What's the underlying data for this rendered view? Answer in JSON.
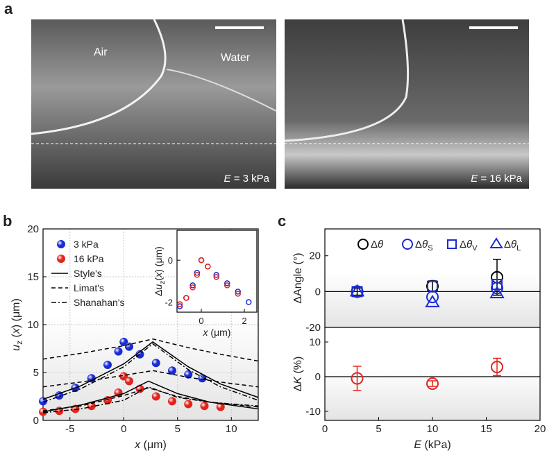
{
  "panel_labels": [
    "a",
    "b",
    "c"
  ],
  "images": [
    {
      "labels": [
        "Air",
        "Water"
      ],
      "caption": [
        {
          "text": "E",
          "style": "italic"
        },
        {
          "text": " = 3 kPa"
        }
      ]
    },
    {
      "caption": [
        {
          "text": "E",
          "style": "italic"
        },
        {
          "text": " = 16 kPa"
        }
      ]
    }
  ],
  "chart_data": [
    {
      "type": "line",
      "xlabel": [
        {
          "text": "x",
          "style": "italic"
        },
        {
          "text": " (μm)"
        }
      ],
      "ylabel": [
        {
          "text": "u",
          "style": "italic"
        },
        {
          "text": "z",
          "style": "sub"
        },
        {
          "text": " ("
        },
        {
          "text": "x",
          "style": "italic"
        },
        {
          "text": ") (μm)"
        }
      ],
      "xlim": [
        -7.5,
        12.5
      ],
      "ylim": [
        0,
        20
      ],
      "xticks": [
        -5,
        0,
        5,
        10
      ],
      "yticks": [
        0,
        5,
        10,
        15,
        20
      ],
      "grid": true,
      "legend": "upper left",
      "series": [
        {
          "name": "3 kPa",
          "color": "#1a2bd6",
          "marker": "sphere",
          "x": [
            -7.5,
            -6,
            -4.5,
            -3,
            -1.5,
            -0.5,
            0,
            0.5,
            1.5,
            3,
            4.5,
            6,
            7.3
          ],
          "values": [
            2.0,
            2.6,
            3.4,
            4.4,
            5.8,
            7.2,
            8.2,
            7.7,
            6.9,
            6.0,
            5.2,
            4.8,
            4.4
          ]
        },
        {
          "name": "16 kPa",
          "color": "#e3241d",
          "marker": "sphere",
          "x": [
            -7.5,
            -6,
            -4.5,
            -3,
            -1.5,
            -0.5,
            0,
            0.5,
            1.5,
            3,
            4.5,
            6,
            7.5,
            9
          ],
          "values": [
            0.9,
            1.0,
            1.2,
            1.5,
            2.1,
            2.9,
            4.6,
            4.1,
            3.3,
            2.5,
            2.0,
            1.7,
            1.5,
            1.4
          ]
        },
        {
          "name": "Style's",
          "color": "#000000",
          "dash": "solid",
          "x": [
            -7.5,
            -4,
            0,
            2.7,
            6,
            9,
            12.5
          ],
          "values": [
            2.2,
            3.6,
            5.9,
            8.2,
            5.6,
            3.8,
            2.4
          ]
        },
        {
          "color": "#000000",
          "dash": "solid",
          "x": [
            -7.5,
            -4,
            0,
            2.3,
            5,
            8,
            12.5
          ],
          "values": [
            0.9,
            1.6,
            2.8,
            4.1,
            2.8,
            1.9,
            1.2
          ]
        },
        {
          "name": "Limat's",
          "color": "#000000",
          "dash": "dashed",
          "x": [
            -7.5,
            -4,
            0,
            2.7,
            6,
            9,
            12.5
          ],
          "values": [
            6.4,
            7.0,
            7.8,
            8.5,
            7.6,
            6.9,
            6.2
          ]
        },
        {
          "color": "#000000",
          "dash": "dashed",
          "x": [
            -7.5,
            -4,
            0,
            2.7,
            6,
            9,
            12.5
          ],
          "values": [
            3.5,
            4.0,
            4.7,
            5.2,
            4.5,
            4.0,
            3.5
          ]
        },
        {
          "color": "#000000",
          "dash": "dashed",
          "x": [
            -7.5,
            -4,
            0,
            2.3,
            5,
            8,
            12.5
          ],
          "values": [
            1.0,
            1.5,
            2.6,
            3.4,
            2.5,
            1.9,
            1.4
          ]
        },
        {
          "name": "Shanahan's",
          "color": "#000000",
          "dash": "dashdot",
          "x": [
            -7.5,
            -4,
            0,
            2.7,
            6,
            9,
            12.5
          ],
          "values": [
            1.9,
            3.3,
            5.6,
            8.0,
            5.3,
            3.5,
            2.1
          ]
        },
        {
          "color": "#000000",
          "dash": "dashdot",
          "x": [
            -7.5,
            -4,
            0,
            2.3,
            5,
            8,
            12.5
          ],
          "values": [
            0.8,
            1.2,
            2.1,
            3.5,
            2.4,
            1.9,
            1.5
          ]
        }
      ]
    },
    {
      "type": "line",
      "xlabel": [
        {
          "text": "x",
          "style": "italic"
        },
        {
          "text": " (μm)"
        }
      ],
      "ylabel": [
        {
          "text": "Δ"
        },
        {
          "text": "u",
          "style": "italic"
        },
        {
          "text": "z",
          "style": "sub"
        },
        {
          "text": "("
        },
        {
          "text": "x",
          "style": "italic"
        },
        {
          "text": ") (μm)"
        }
      ],
      "xlim": [
        -1.13,
        2.58
      ],
      "ylim": [
        -2.48,
        1.43
      ],
      "xticks": [
        0,
        2
      ],
      "yticks": [
        -2,
        0
      ],
      "series": [
        {
          "color": "#1a2bd6",
          "marker": "ring",
          "x": [
            -1.0,
            -0.7,
            -0.4,
            -0.2,
            0,
            0.3,
            0.7,
            1.2,
            1.7,
            2.2
          ],
          "values": [
            -2.2,
            -1.8,
            -1.2,
            -0.6,
            0,
            -0.3,
            -0.7,
            -1.1,
            -1.5,
            -2.0
          ]
        },
        {
          "color": "#e3241d",
          "marker": "ring",
          "x": [
            -1.0,
            -0.7,
            -0.4,
            -0.2,
            0,
            0.3,
            0.7,
            1.2,
            1.7
          ],
          "values": [
            -2.1,
            -1.8,
            -1.3,
            -0.7,
            0,
            -0.3,
            -0.8,
            -1.2,
            -1.6
          ]
        }
      ]
    },
    {
      "type": "scatter",
      "ylabel": [
        {
          "text": "ΔAngle (°)"
        }
      ],
      "xlim": [
        0,
        20
      ],
      "ylim": [
        -20,
        35
      ],
      "yticks": [
        -20,
        0,
        20
      ],
      "legend": "top",
      "zero_line": true,
      "series": [
        {
          "name": [
            {
              "text": "Δ"
            },
            {
              "text": "θ",
              "style": "italic"
            }
          ],
          "color": "#000000",
          "marker": "circle",
          "x": [
            3,
            10,
            16
          ],
          "values": [
            0,
            3,
            8
          ],
          "errors": [
            2,
            3,
            10
          ]
        },
        {
          "name": [
            {
              "text": "Δ"
            },
            {
              "text": "θ",
              "style": "italic"
            },
            {
              "text": "S",
              "style": "sub"
            }
          ],
          "color": "#1a2bd6",
          "marker": "circle",
          "x": [
            3,
            10,
            16
          ],
          "values": [
            0,
            -3,
            2
          ]
        },
        {
          "name": [
            {
              "text": "Δ"
            },
            {
              "text": "θ",
              "style": "italic"
            },
            {
              "text": "V",
              "style": "sub"
            }
          ],
          "color": "#1a2bd6",
          "marker": "square",
          "x": [
            3,
            10,
            16
          ],
          "values": [
            0,
            3,
            4
          ]
        },
        {
          "name": [
            {
              "text": "Δ"
            },
            {
              "text": "θ",
              "style": "italic"
            },
            {
              "text": "L",
              "style": "sub"
            }
          ],
          "color": "#1a2bd6",
          "marker": "triangle",
          "x": [
            3,
            10,
            16
          ],
          "values": [
            0,
            -6,
            -1
          ]
        }
      ]
    },
    {
      "type": "scatter",
      "xlabel": [
        {
          "text": "E",
          "style": "italic"
        },
        {
          "text": " (kPa)"
        }
      ],
      "ylabel": [
        {
          "text": "Δ"
        },
        {
          "text": "K",
          "style": "italic"
        },
        {
          "text": " (%)"
        }
      ],
      "xlim": [
        0,
        20
      ],
      "ylim": [
        -12.6,
        14.2
      ],
      "xticks": [
        0,
        5,
        10,
        15,
        20
      ],
      "yticks": [
        -10,
        0,
        10
      ],
      "zero_line": true,
      "series": [
        {
          "color": "#e3241d",
          "marker": "circle",
          "x": [
            3,
            10,
            16
          ],
          "values": [
            -0.5,
            -2,
            2.8
          ],
          "errors": [
            3.5,
            0.8,
            2.5
          ]
        }
      ]
    }
  ]
}
